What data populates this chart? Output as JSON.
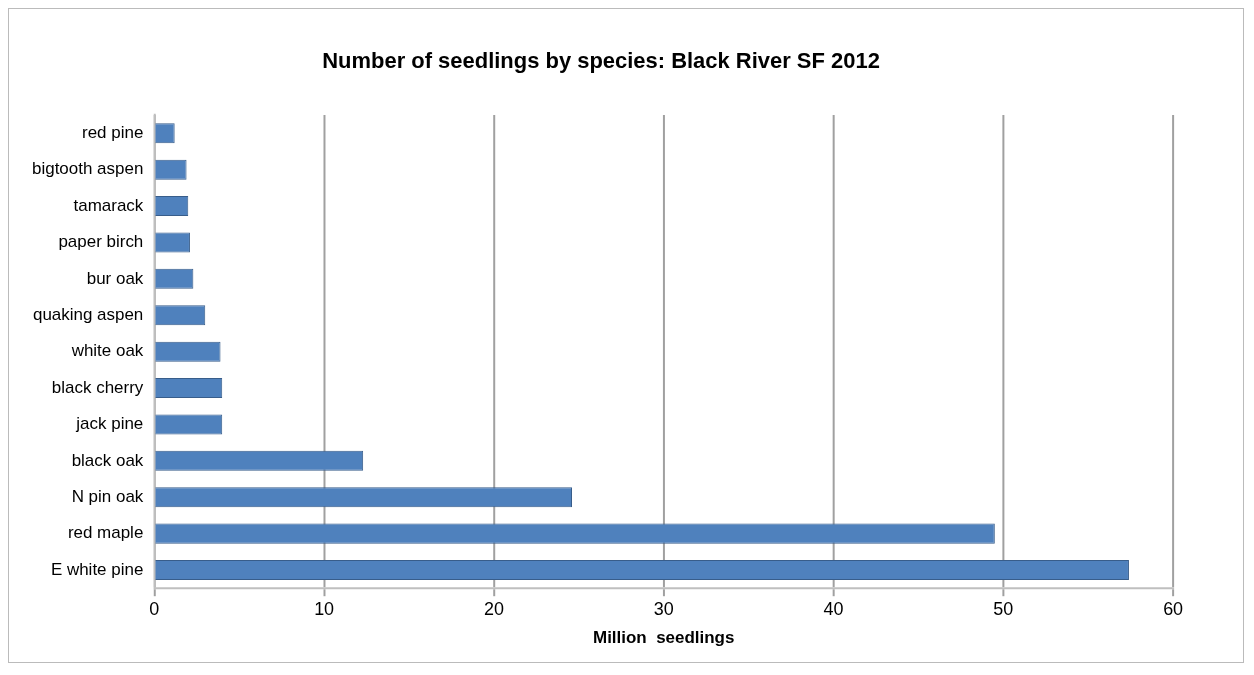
{
  "chart_data": {
    "type": "bar",
    "orientation": "horizontal",
    "title": "Number of seedlings by species: Black River SF 2012",
    "xlabel": "Million  seedlings",
    "categories": [
      "red pine",
      "bigtooth aspen",
      "tamarack",
      "paper birch",
      "bur oak",
      "quaking aspen",
      "white oak",
      "black cherry",
      "jack pine",
      "black oak",
      "N pin oak",
      "red maple",
      "E white pine"
    ],
    "values": [
      1.2,
      1.9,
      2.0,
      2.1,
      2.3,
      3.0,
      3.9,
      4.0,
      4.0,
      12.3,
      24.6,
      49.5,
      57.4
    ],
    "color": "#4f81bd",
    "xlim": [
      0,
      60
    ],
    "xticks": [
      0,
      10,
      20,
      30,
      40,
      50,
      60
    ],
    "grid": "x"
  }
}
